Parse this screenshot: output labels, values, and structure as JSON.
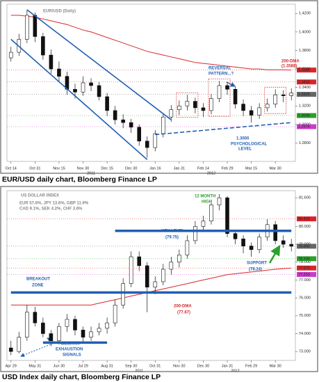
{
  "chart_data": [
    {
      "type": "candlestick",
      "title": "EUR/USD (Daily)",
      "caption": "EUR/USD daily chart, Bloomberg Finance LP",
      "categories": [
        "Oct 14",
        null,
        null,
        "Oct 31",
        null,
        null,
        "Nov 15",
        null,
        null,
        "Nov 30",
        null,
        null,
        "Dec 15",
        null,
        null,
        "Dec 30",
        null,
        null,
        "Jan 16",
        null,
        null,
        "Jan 31",
        null,
        null,
        "Feb 14",
        null,
        null,
        "Feb 29",
        null,
        null,
        "Mar 15",
        null,
        null,
        "Mar 30",
        null,
        null
      ],
      "years": [
        {
          "label": "2011",
          "at": 10
        },
        {
          "label": "2012",
          "at": 25
        }
      ],
      "open": [
        1.372,
        1.378,
        1.392,
        1.418,
        1.395,
        1.375,
        1.36,
        1.352,
        1.338,
        1.335,
        1.345,
        1.342,
        1.33,
        1.315,
        1.305,
        1.302,
        1.297,
        1.282,
        1.275,
        1.29,
        1.308,
        1.316,
        1.32,
        1.325,
        1.318,
        1.315,
        1.328,
        1.342,
        1.338,
        1.322,
        1.315,
        1.31,
        1.318,
        1.322,
        1.332,
        1.331
      ],
      "high": [
        1.384,
        1.398,
        1.424,
        1.421,
        1.399,
        1.381,
        1.368,
        1.357,
        1.344,
        1.352,
        1.35,
        1.346,
        1.334,
        1.32,
        1.311,
        1.306,
        1.3,
        1.287,
        1.294,
        1.312,
        1.321,
        1.326,
        1.332,
        1.329,
        1.323,
        1.333,
        1.347,
        1.346,
        1.341,
        1.327,
        1.32,
        1.323,
        1.328,
        1.338,
        1.337,
        1.339
      ],
      "low": [
        1.368,
        1.374,
        1.388,
        1.389,
        1.37,
        1.355,
        1.346,
        1.332,
        1.328,
        1.331,
        1.336,
        1.326,
        1.309,
        1.3,
        1.296,
        1.291,
        1.277,
        1.264,
        1.271,
        1.286,
        1.303,
        1.31,
        1.315,
        1.312,
        1.308,
        1.311,
        1.324,
        1.332,
        1.317,
        1.309,
        1.302,
        1.306,
        1.314,
        1.318,
        1.324,
        1.326
      ],
      "close": [
        1.378,
        1.392,
        1.418,
        1.395,
        1.375,
        1.36,
        1.352,
        1.338,
        1.335,
        1.345,
        1.342,
        1.33,
        1.315,
        1.305,
        1.302,
        1.297,
        1.282,
        1.275,
        1.29,
        1.308,
        1.316,
        1.32,
        1.325,
        1.318,
        1.315,
        1.328,
        1.342,
        1.338,
        1.322,
        1.315,
        1.31,
        1.318,
        1.322,
        1.332,
        1.331,
        1.334
      ],
      "dma": {
        "color": "#d9262b",
        "values": [
          1.418,
          1.418,
          1.417,
          1.416,
          1.414,
          1.412,
          1.41,
          1.408,
          1.405,
          1.402,
          1.4,
          1.397,
          1.394,
          1.391,
          1.388,
          1.385,
          1.382,
          1.379,
          1.377,
          1.375,
          1.373,
          1.371,
          1.369,
          1.367,
          1.366,
          1.365,
          1.364,
          1.363,
          1.362,
          1.361,
          1.36,
          1.36,
          1.359,
          1.359,
          1.359,
          1.3588
        ]
      },
      "ylim": [
        1.26,
        1.43
      ],
      "yticks": [
        {
          "value": 1.28,
          "label": "1.2800"
        },
        {
          "value": 1.3,
          "label": "1.3000"
        },
        {
          "value": 1.32,
          "label": "1.3200"
        },
        {
          "value": 1.34,
          "label": "1.3400"
        },
        {
          "value": 1.36,
          "label": "1.3600"
        },
        {
          "value": 1.38,
          "label": "1.3800"
        },
        {
          "value": 1.4,
          "label": "1.4000"
        },
        {
          "value": 1.42,
          "label": "1.4200"
        }
      ],
      "price_tags": [
        {
          "value": 1.3588,
          "color": "#d9262b"
        },
        {
          "value": 1.3459,
          "color": "#d9262b"
        },
        {
          "value": 1.3325,
          "color": "#666666"
        },
        {
          "value": 1.3096,
          "color": "#2ca02c"
        },
        {
          "value": 1.2976,
          "color": "#c93dc9"
        }
      ],
      "trendlines": [
        {
          "x": [
            2,
            20
          ],
          "y": [
            1.424,
            1.305
          ],
          "color": "#1f5fb4",
          "style": "solid"
        },
        {
          "x": [
            0,
            17
          ],
          "y": [
            1.392,
            1.262
          ],
          "color": "#1f5fb4",
          "style": "solid"
        },
        {
          "x": [
            18,
            35
          ],
          "y": [
            1.289,
            1.302
          ],
          "color": "#1f5fb4",
          "style": "dashed"
        }
      ],
      "highlights": [
        [
          21,
          23
        ],
        [
          25,
          27
        ],
        [
          32,
          34
        ]
      ],
      "annotations": [
        {
          "text": "REVERSAL",
          "color": "#1f5fb4"
        },
        {
          "text": "PATTERN...?",
          "color": "#1f5fb4"
        },
        {
          "text": "200-DMA",
          "color": "#d9262b"
        },
        {
          "text": "(1.3588)",
          "color": "#d9262b"
        },
        {
          "text": "1.3000",
          "color": "#1f5fb4"
        },
        {
          "text": "PSYCHOLOGICAL",
          "color": "#1f5fb4"
        },
        {
          "text": "LEVEL",
          "color": "#1f5fb4"
        }
      ]
    },
    {
      "type": "candlestick",
      "title": "US DOLLAR INDEX",
      "caption": "USD Index daily chart, Bloomberg Finance LP",
      "subtitle": [
        "EUR 57.6%, JPY 13.6%, GBP 11.9%",
        "CAD 9.1%, SEK 4.2%, CHF 3.6%"
      ],
      "categories": [
        "Apr 29",
        null,
        null,
        "May 31",
        null,
        null,
        "Jun 30",
        null,
        null,
        "Jul 29",
        null,
        null,
        "Aug 31",
        null,
        null,
        "Sep 30",
        null,
        null,
        "Oct 31",
        null,
        null,
        "Nov 30",
        null,
        null,
        "Dec 30",
        null,
        null,
        "Jan 31",
        null,
        null,
        "Feb 29",
        null,
        null,
        "Mar 30",
        null,
        null
      ],
      "years": [
        {
          "label": "2011",
          "at": 16
        },
        {
          "label": "2012",
          "at": 28
        }
      ],
      "open": [
        73.2,
        73.0,
        73.8,
        75.2,
        74.6,
        74.0,
        73.6,
        74.4,
        74.8,
        74.2,
        73.8,
        74.1,
        74.3,
        74.6,
        75.6,
        76.8,
        78.3,
        77.8,
        76.6,
        76.9,
        77.6,
        78.0,
        78.4,
        79.2,
        80.0,
        80.3,
        81.2,
        81.6,
        79.6,
        79.3,
        78.9,
        78.7,
        79.4,
        80.1,
        79.2,
        79.0
      ],
      "high": [
        73.6,
        74.1,
        75.6,
        75.5,
        74.9,
        74.2,
        74.6,
        75.1,
        75.0,
        74.4,
        74.4,
        74.6,
        74.9,
        75.9,
        77.1,
        78.6,
        78.6,
        78.0,
        77.2,
        77.9,
        78.3,
        78.7,
        79.5,
        80.3,
        80.6,
        81.5,
        81.8,
        81.7,
        79.8,
        79.5,
        79.1,
        79.6,
        80.4,
        80.3,
        79.5,
        79.3
      ],
      "low": [
        72.8,
        72.9,
        73.6,
        74.4,
        73.8,
        73.3,
        73.4,
        74.1,
        73.9,
        73.5,
        73.6,
        73.9,
        74.0,
        74.4,
        75.4,
        76.6,
        77.5,
        75.2,
        76.2,
        76.7,
        77.3,
        77.7,
        78.2,
        79.0,
        79.7,
        80.1,
        80.9,
        79.4,
        79.0,
        78.5,
        78.3,
        78.5,
        79.2,
        79.0,
        78.8,
        78.6
      ],
      "close": [
        73.0,
        73.8,
        75.2,
        74.6,
        74.0,
        73.6,
        74.4,
        74.8,
        74.2,
        73.8,
        74.1,
        74.3,
        74.6,
        75.6,
        76.8,
        78.3,
        77.8,
        76.6,
        76.9,
        77.6,
        78.0,
        78.4,
        79.2,
        80.0,
        80.3,
        81.2,
        81.6,
        79.6,
        79.3,
        78.9,
        78.7,
        79.4,
        80.1,
        79.2,
        79.0,
        78.89
      ],
      "dma": {
        "color": "#d9262b",
        "values": [
          75.6,
          75.6,
          75.6,
          75.6,
          75.6,
          75.6,
          75.6,
          75.6,
          75.6,
          75.6,
          75.6,
          75.7,
          75.8,
          75.9,
          76.0,
          76.1,
          76.2,
          76.3,
          76.4,
          76.5,
          76.6,
          76.7,
          76.8,
          76.9,
          77.0,
          77.1,
          77.2,
          77.3,
          77.35,
          77.4,
          77.45,
          77.5,
          77.55,
          77.6,
          77.64,
          77.67
        ]
      },
      "ylim": [
        72.5,
        82.0
      ],
      "yticks": [
        {
          "value": 73,
          "label": "73.000"
        },
        {
          "value": 74,
          "label": "74.000"
        },
        {
          "value": 75,
          "label": "75.000"
        },
        {
          "value": 76,
          "label": "76.000"
        },
        {
          "value": 77,
          "label": "77.000"
        },
        {
          "value": 78,
          "label": "78.000"
        },
        {
          "value": 79,
          "label": "79.000"
        },
        {
          "value": 80,
          "label": "80.000"
        },
        {
          "value": 81.6,
          "label": "81.600"
        }
      ],
      "price_tags": [
        {
          "value": 80.42,
          "label": "80.420",
          "color": "#d9262b"
        },
        {
          "value": 78.89,
          "label": "78.890",
          "color": "#666666"
        },
        {
          "value": 78.19,
          "label": "78.190",
          "color": "#2ca02c"
        },
        {
          "value": 77.67,
          "label": "77.670",
          "color": "#d9262b"
        },
        {
          "value": 77.31,
          "label": "77.310",
          "color": "#c93dc9"
        }
      ],
      "trendlines": [
        {
          "x": [
            13,
            35
          ],
          "y": [
            79.75,
            79.75
          ],
          "color": "#1f5fb4",
          "style": "thick"
        },
        {
          "x": [
            0,
            35
          ],
          "y": [
            76.3,
            76.3
          ],
          "color": "#1f5fb4",
          "style": "thick"
        },
        {
          "x": [
            4,
            12
          ],
          "y": [
            73.5,
            73.5
          ],
          "color": "#1f5fb4",
          "style": "thick"
        }
      ],
      "highlights": [],
      "annotations": [
        {
          "text": "12 MONTH",
          "color": "#2ca02c"
        },
        {
          "text": "HIGH",
          "color": "#2ca02c"
        },
        {
          "text": "KEY LEVEL",
          "color": "#1f5fb4"
        },
        {
          "text": "(79.75)",
          "color": "#1f5fb4"
        },
        {
          "text": "SUPPORT",
          "color": "#1f5fb4"
        },
        {
          "text": "(78.24)",
          "color": "#1f5fb4"
        },
        {
          "text": "BREAKOUT",
          "color": "#1f5fb4"
        },
        {
          "text": "ZONE",
          "color": "#1f5fb4"
        },
        {
          "text": "200-DMA",
          "color": "#d9262b"
        },
        {
          "text": "(77.67)",
          "color": "#d9262b"
        },
        {
          "text": "DEMARK™",
          "color": "#1f5fb4"
        },
        {
          "text": "EXHAUSTION",
          "color": "#1f5fb4"
        },
        {
          "text": "SIGNALS",
          "color": "#1f5fb4"
        }
      ]
    }
  ]
}
